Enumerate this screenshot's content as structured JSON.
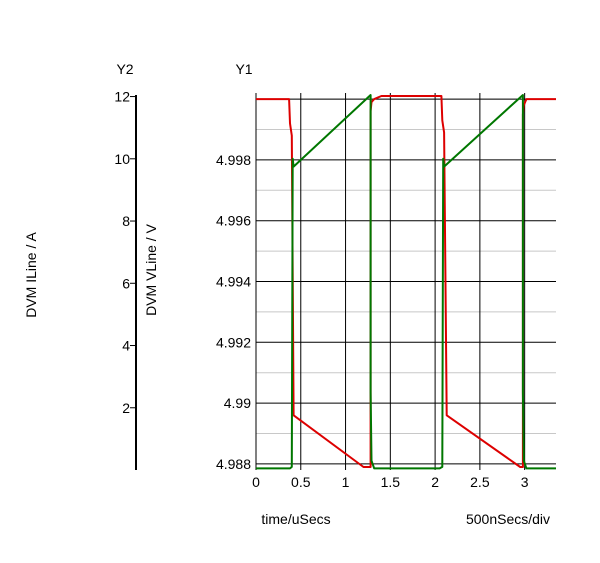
{
  "chart_data": {
    "type": "line",
    "y2_axis": {
      "title": "Y2",
      "label": "DVM ILine / A",
      "ticks": [
        2,
        4,
        6,
        8,
        10,
        12
      ],
      "ylim": [
        0,
        12.05
      ]
    },
    "y1_axis": {
      "title": "Y1",
      "label": "DVM VLine / V",
      "ticks": [
        4.988,
        4.99,
        4.992,
        4.994,
        4.996,
        4.998
      ],
      "tick_labels": [
        "4.988",
        "4.99",
        "4.992",
        "4.994",
        "4.996",
        "4.998"
      ],
      "ylim": [
        4.9878,
        5.0002
      ]
    },
    "x_axis": {
      "ticks": [
        0,
        0.5,
        1,
        1.5,
        2,
        2.5,
        3
      ],
      "xlim": [
        0,
        3.35
      ],
      "label": "time/uSecs",
      "div_label": "500nSecs/div"
    },
    "grid": true,
    "series": [
      {
        "axis": "y1",
        "color": "#dd0000",
        "x": [
          0,
          0.35,
          0.37,
          0.38,
          0.4,
          0.42,
          1.2,
          1.28,
          1.28,
          1.29,
          1.32,
          1.4,
          2.0,
          2.05,
          2.07,
          2.08,
          2.1,
          2.13,
          2.95,
          2.98,
          2.98,
          2.99,
          3.02,
          3.1,
          3.35
        ],
        "y": [
          5.0,
          5.0,
          5.0,
          4.9992,
          4.9988,
          4.9896,
          4.9879,
          4.9879,
          4.9996,
          4.9999,
          5.0,
          5.0001,
          5.0001,
          5.0001,
          5.0001,
          4.9993,
          4.9989,
          4.9896,
          4.9879,
          4.9879,
          4.9995,
          4.9998,
          5.0,
          5.0,
          5.0
        ]
      },
      {
        "axis": "y2",
        "color": "#007700",
        "x": [
          0,
          0.38,
          0.4,
          0.41,
          0.42,
          1.28,
          1.28,
          1.29,
          1.32,
          1.4,
          2.05,
          2.08,
          2.09,
          2.1,
          2.98,
          2.98,
          2.99,
          3.02,
          3.1,
          3.35
        ],
        "y": [
          0.05,
          0.05,
          0.1,
          10.0,
          9.75,
          12.05,
          2.5,
          0.3,
          0.05,
          0.05,
          0.05,
          0.1,
          10.0,
          9.75,
          12.05,
          2.5,
          0.3,
          0.05,
          0.05,
          0.05
        ]
      }
    ]
  }
}
